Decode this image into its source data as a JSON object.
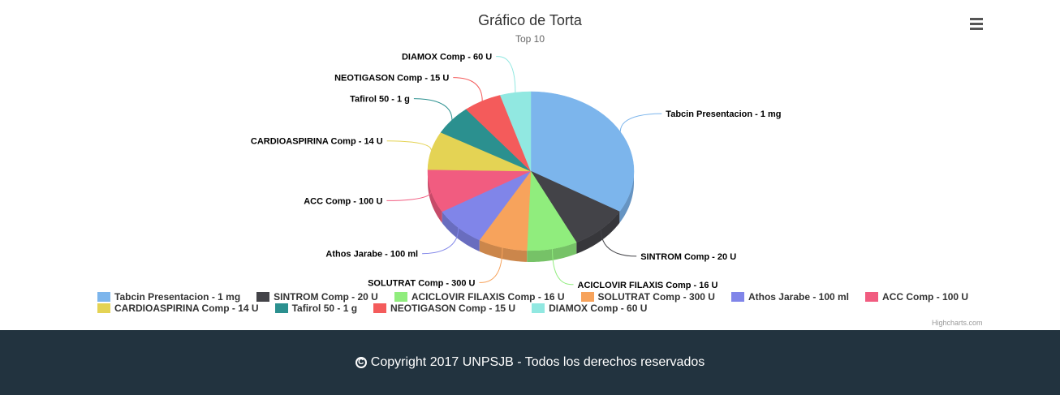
{
  "chart_data": {
    "type": "pie",
    "title": "Gráfico de Torta",
    "subtitle": "Top 10",
    "series": [
      {
        "data": [
          {
            "name": "Tabcin Presentacion - 1 mg",
            "value": 33.5,
            "color": "#7cb5ec"
          },
          {
            "name": "SINTROM Comp - 20 U",
            "value": 9.2,
            "color": "#434348"
          },
          {
            "name": "ACICLOVIR FILAXIS Comp - 16 U",
            "value": 7.9,
            "color": "#90ed7d"
          },
          {
            "name": "SOLUTRAT Comp - 300 U",
            "value": 7.7,
            "color": "#f7a35c"
          },
          {
            "name": "Athos Jarabe - 100 ml",
            "value": 8.2,
            "color": "#8085e9"
          },
          {
            "name": "ACC Comp - 100 U",
            "value": 8.8,
            "color": "#f15c80"
          },
          {
            "name": "CARDIOASPIRINA Comp - 14 U",
            "value": 7.8,
            "color": "#e4d354"
          },
          {
            "name": "Tafirol 50 - 1 g",
            "value": 6.1,
            "color": "#2b908f"
          },
          {
            "name": "NEOTIGASON Comp - 15 U",
            "value": 6.0,
            "color": "#f45b5b"
          },
          {
            "name": "DIAMOX Comp - 60 U",
            "value": 4.8,
            "color": "#91e8e1"
          }
        ]
      }
    ],
    "legend_placement": "bottom"
  },
  "menu": {
    "icon": "hamburger-menu-icon"
  },
  "credits": "Highcharts.com",
  "footer": {
    "icon": "copyright-icon",
    "icon_glyph": "C",
    "text": "Copyright 2017 UNPSJB - Todos los derechos reservados"
  }
}
